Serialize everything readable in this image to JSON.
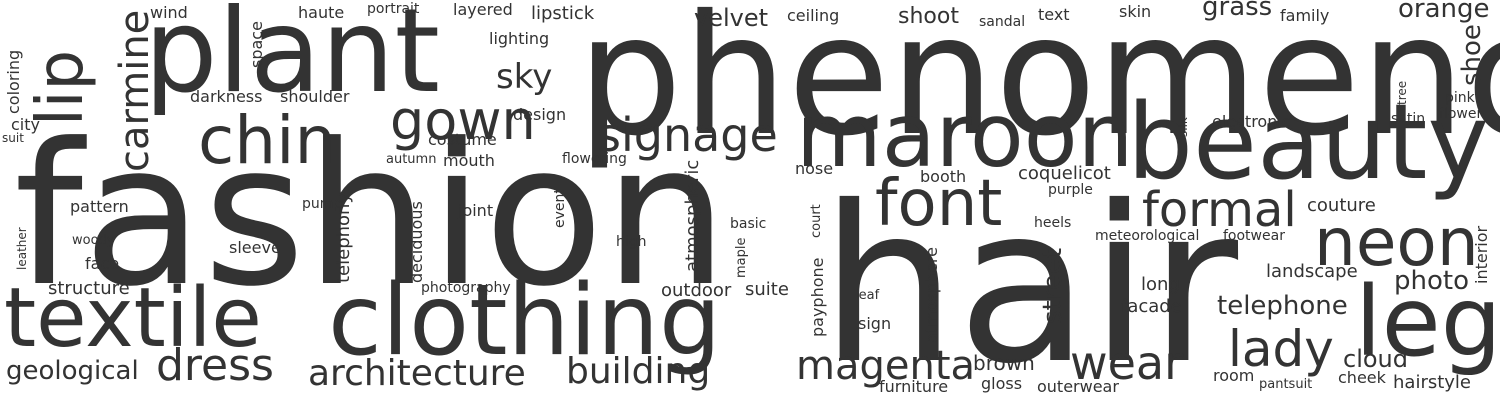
{
  "word_color": "#333333",
  "background_color": "#ffffff",
  "words": [
    {
      "text": "phenomenon"
    },
    {
      "text": "fashion"
    },
    {
      "text": "hair"
    },
    {
      "text": "plant"
    },
    {
      "text": "beauty"
    },
    {
      "text": "maroon"
    },
    {
      "text": "clothing"
    },
    {
      "text": "textile"
    },
    {
      "text": "leg"
    },
    {
      "text": "chin"
    },
    {
      "text": "neon"
    },
    {
      "text": "font"
    },
    {
      "text": "lip"
    },
    {
      "text": "signage"
    },
    {
      "text": "gown"
    },
    {
      "text": "carmine"
    },
    {
      "text": "formal"
    },
    {
      "text": "lady"
    },
    {
      "text": "wear"
    },
    {
      "text": "dress"
    },
    {
      "text": "architecture"
    },
    {
      "text": "building"
    },
    {
      "text": "magenta"
    },
    {
      "text": "sky"
    },
    {
      "text": "street"
    },
    {
      "text": "geological"
    },
    {
      "text": "shoot"
    },
    {
      "text": "velvet"
    },
    {
      "text": "telephone"
    },
    {
      "text": "photo"
    },
    {
      "text": "orange"
    },
    {
      "text": "grass"
    },
    {
      "text": "shoe"
    },
    {
      "text": "atmospheric"
    },
    {
      "text": "cloud"
    },
    {
      "text": "brown"
    },
    {
      "text": "structure"
    },
    {
      "text": "hairstyle"
    },
    {
      "text": "outdoor"
    },
    {
      "text": "suite"
    },
    {
      "text": "landscape"
    },
    {
      "text": "telephony"
    },
    {
      "text": "couture"
    },
    {
      "text": "coquelicot"
    },
    {
      "text": "facade"
    },
    {
      "text": "long"
    },
    {
      "text": "electronic"
    },
    {
      "text": "lipstick"
    },
    {
      "text": "layered"
    },
    {
      "text": "haute"
    },
    {
      "text": "wind"
    },
    {
      "text": "ceiling"
    },
    {
      "text": "text"
    },
    {
      "text": "skin"
    },
    {
      "text": "family"
    },
    {
      "text": "lighting"
    },
    {
      "text": "darkness"
    },
    {
      "text": "shoulder"
    },
    {
      "text": "costume"
    },
    {
      "text": "design"
    },
    {
      "text": "mouth"
    },
    {
      "text": "pattern"
    },
    {
      "text": "joint"
    },
    {
      "text": "booth"
    },
    {
      "text": "nose"
    },
    {
      "text": "sleeve"
    },
    {
      "text": "face"
    },
    {
      "text": "sign"
    },
    {
      "text": "atmosphere"
    },
    {
      "text": "payphone"
    },
    {
      "text": "interior"
    },
    {
      "text": "deciduous"
    },
    {
      "text": "furniture"
    },
    {
      "text": "gloss"
    },
    {
      "text": "outerwear"
    },
    {
      "text": "cheek"
    },
    {
      "text": "room"
    },
    {
      "text": "coloring"
    },
    {
      "text": "space"
    },
    {
      "text": "city"
    },
    {
      "text": "event"
    },
    {
      "text": "pink"
    },
    {
      "text": "flower"
    },
    {
      "text": "satin"
    },
    {
      "text": "flowering"
    },
    {
      "text": "portrait"
    },
    {
      "text": "sandal"
    },
    {
      "text": "autumn"
    },
    {
      "text": "purple"
    },
    {
      "text": "heels"
    },
    {
      "text": "meteorological"
    },
    {
      "text": "footwear"
    },
    {
      "text": "basic"
    },
    {
      "text": "high"
    },
    {
      "text": "pump"
    },
    {
      "text": "woody"
    },
    {
      "text": "photography"
    },
    {
      "text": "leaf"
    },
    {
      "text": "pantsuit"
    },
    {
      "text": "court"
    },
    {
      "text": "maple"
    },
    {
      "text": "leather"
    },
    {
      "text": "silk"
    },
    {
      "text": "tree"
    },
    {
      "text": "suit"
    }
  ]
}
